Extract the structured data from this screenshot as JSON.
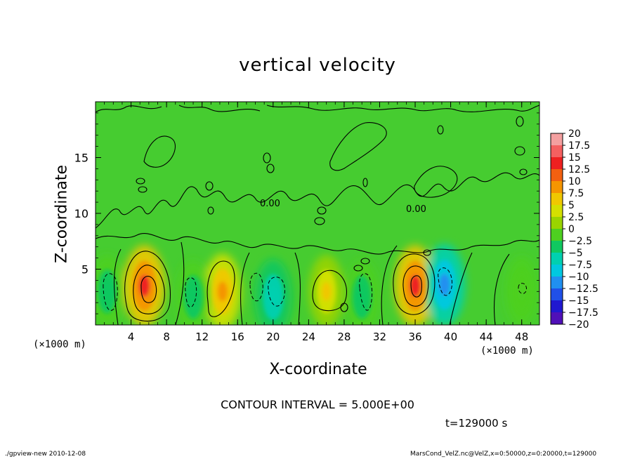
{
  "chart_data": {
    "type": "heatmap",
    "title": "vertical velocity",
    "xlabel": "X-coordinate",
    "ylabel": "Z-coordinate",
    "x_unit": "(×1000 m)",
    "xlim": [
      0,
      50
    ],
    "ylim": [
      0,
      20
    ],
    "x_ticks": [
      4,
      8,
      12,
      16,
      20,
      24,
      28,
      32,
      36,
      40,
      44,
      48
    ],
    "y_ticks": [
      5,
      10,
      15
    ],
    "contour_interval": "CONTOUR INTERVAL = 5.000E+00",
    "time": "t=129000 s",
    "colorbar": {
      "levels": [
        "20",
        "17.5",
        "15",
        "12.5",
        "10",
        "7.5",
        "5",
        "2.5",
        "0",
        "−2.5",
        "−5",
        "−7.5",
        "−10",
        "−12.5",
        "−15",
        "−17.5",
        "−20"
      ],
      "colors": [
        "#f4a0a0",
        "#f46060",
        "#ee2020",
        "#f26010",
        "#f59500",
        "#f0c800",
        "#d4e000",
        "#9ad400",
        "#4ed020",
        "#10c860",
        "#00d0b0",
        "#00c8e0",
        "#2090f0",
        "#2050e8",
        "#2018d0",
        "#5010b8",
        "#7010a8"
      ]
    },
    "features": [
      {
        "x": 5.5,
        "z": 3.5,
        "value": 12.5
      },
      {
        "x": 14.3,
        "z": 3.0,
        "value": 7.5
      },
      {
        "x": 36.0,
        "z": 3.5,
        "value": 12.5
      },
      {
        "x": 39.3,
        "z": 3.6,
        "value": -12.5
      },
      {
        "x": 1.3,
        "z": 3.0,
        "value": -5
      },
      {
        "x": 11.0,
        "z": 2.5,
        "value": -5
      },
      {
        "x": 20.0,
        "z": 2.5,
        "value": -7.5
      },
      {
        "x": 30.0,
        "z": 2.5,
        "value": -5
      },
      {
        "x": 26.0,
        "z": 3.0,
        "value": 5
      },
      {
        "x": 48.0,
        "z": 3.0,
        "value": -2.5
      }
    ],
    "contour_labels": [
      "0.00",
      "0.00"
    ]
  },
  "footer": {
    "left": "./gpview-new   2010-12-08",
    "right": "MarsCond_VelZ.nc@VelZ,x=0:50000,z=0:20000,t=129000"
  }
}
